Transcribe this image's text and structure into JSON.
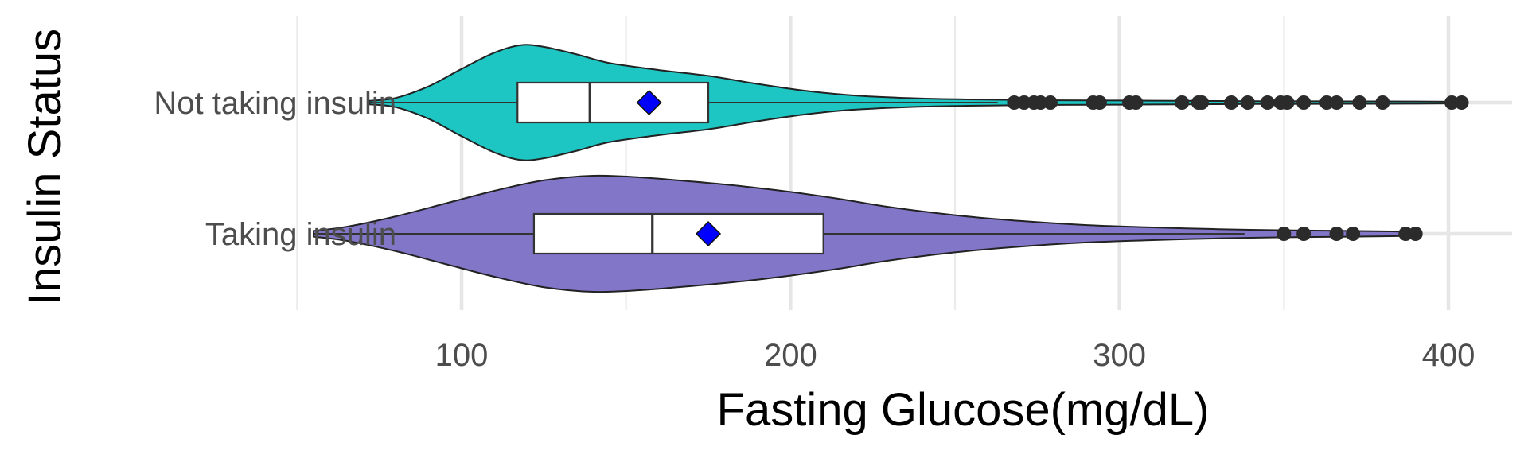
{
  "chart_data": {
    "type": "violin",
    "xlabel": "Fasting Glucose(mg/dL)",
    "ylabel": "Insulin Status",
    "xlim": [
      50,
      420
    ],
    "x_ticks": [
      100,
      200,
      300,
      400
    ],
    "x_minor_ticks": [
      50,
      150,
      250,
      350
    ],
    "grid": true,
    "legend": "none",
    "mean_marker_color": "#0000ff",
    "groups": [
      {
        "name": "Not taking insulin",
        "fill": "#1ec6c3",
        "min": 72,
        "max": 404,
        "whisker_low": 72,
        "whisker_high": 263,
        "q1": 117,
        "median": 139,
        "q3": 175,
        "mean": 157,
        "density": [
          [
            72,
            0.03
          ],
          [
            80,
            0.08
          ],
          [
            90,
            0.28
          ],
          [
            100,
            0.58
          ],
          [
            110,
            0.86
          ],
          [
            118,
            0.99
          ],
          [
            125,
            0.96
          ],
          [
            135,
            0.83
          ],
          [
            145,
            0.68
          ],
          [
            160,
            0.56
          ],
          [
            175,
            0.46
          ],
          [
            190,
            0.32
          ],
          [
            205,
            0.2
          ],
          [
            220,
            0.12
          ],
          [
            240,
            0.07
          ],
          [
            260,
            0.05
          ],
          [
            280,
            0.04
          ],
          [
            300,
            0.035
          ],
          [
            320,
            0.03
          ],
          [
            340,
            0.025
          ],
          [
            360,
            0.022
          ],
          [
            380,
            0.02
          ],
          [
            400,
            0.015
          ],
          [
            404,
            0.01
          ]
        ],
        "outliers": [
          268,
          271,
          274,
          276,
          279,
          292,
          294,
          303,
          305,
          319,
          324,
          325,
          334,
          339,
          345,
          349,
          351,
          356,
          363,
          366,
          373,
          380,
          401,
          404
        ]
      },
      {
        "name": "Taking insulin",
        "fill": "#8276c9",
        "min": 55,
        "max": 390,
        "whisker_low": 55,
        "whisker_high": 338,
        "q1": 122,
        "median": 158,
        "q3": 210,
        "mean": 175,
        "density": [
          [
            55,
            0.05
          ],
          [
            65,
            0.12
          ],
          [
            80,
            0.3
          ],
          [
            95,
            0.52
          ],
          [
            110,
            0.74
          ],
          [
            125,
            0.92
          ],
          [
            140,
            1.0
          ],
          [
            155,
            0.97
          ],
          [
            170,
            0.9
          ],
          [
            185,
            0.82
          ],
          [
            200,
            0.72
          ],
          [
            215,
            0.6
          ],
          [
            230,
            0.46
          ],
          [
            250,
            0.32
          ],
          [
            270,
            0.22
          ],
          [
            290,
            0.15
          ],
          [
            310,
            0.11
          ],
          [
            330,
            0.08
          ],
          [
            350,
            0.06
          ],
          [
            370,
            0.05
          ],
          [
            385,
            0.04
          ],
          [
            390,
            0.03
          ]
        ],
        "outliers": [
          350,
          356,
          366,
          371,
          387,
          390
        ]
      }
    ]
  }
}
